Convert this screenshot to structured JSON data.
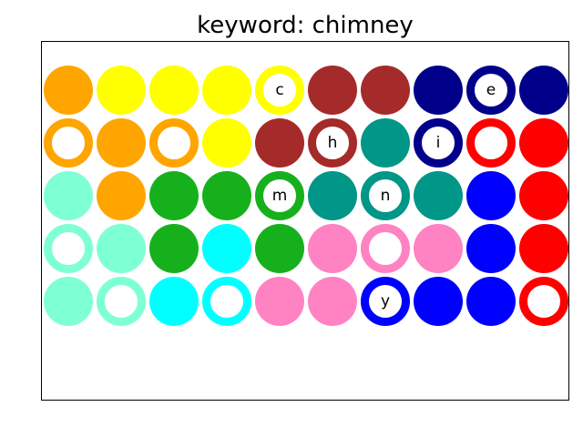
{
  "title": "keyword: chimney",
  "colors": {
    "orange": "#ffa500",
    "yellow": "#ffff00",
    "brown": "#a52a2a",
    "navy": "#00008b",
    "teal": "#009688",
    "red": "#ff0000",
    "aquamarine": "#7fffd4",
    "green": "#17b01d",
    "blue": "#0000ff",
    "cyan": "#00ffff",
    "pink": "#ff82c3"
  },
  "grid": [
    [
      {
        "color": "orange",
        "filled": true,
        "letter": ""
      },
      {
        "color": "yellow",
        "filled": true,
        "letter": ""
      },
      {
        "color": "yellow",
        "filled": true,
        "letter": ""
      },
      {
        "color": "yellow",
        "filled": true,
        "letter": ""
      },
      {
        "color": "yellow",
        "filled": false,
        "letter": "c"
      },
      {
        "color": "brown",
        "filled": true,
        "letter": ""
      },
      {
        "color": "brown",
        "filled": true,
        "letter": ""
      },
      {
        "color": "navy",
        "filled": true,
        "letter": ""
      },
      {
        "color": "navy",
        "filled": false,
        "letter": "e"
      },
      {
        "color": "navy",
        "filled": true,
        "letter": ""
      }
    ],
    [
      {
        "color": "orange",
        "filled": false,
        "letter": ""
      },
      {
        "color": "orange",
        "filled": true,
        "letter": ""
      },
      {
        "color": "orange",
        "filled": false,
        "letter": ""
      },
      {
        "color": "yellow",
        "filled": true,
        "letter": ""
      },
      {
        "color": "brown",
        "filled": true,
        "letter": ""
      },
      {
        "color": "brown",
        "filled": false,
        "letter": "h"
      },
      {
        "color": "teal",
        "filled": true,
        "letter": ""
      },
      {
        "color": "navy",
        "filled": false,
        "letter": "i"
      },
      {
        "color": "red",
        "filled": false,
        "letter": ""
      },
      {
        "color": "red",
        "filled": true,
        "letter": ""
      }
    ],
    [
      {
        "color": "aquamarine",
        "filled": true,
        "letter": ""
      },
      {
        "color": "orange",
        "filled": true,
        "letter": ""
      },
      {
        "color": "green",
        "filled": true,
        "letter": ""
      },
      {
        "color": "green",
        "filled": true,
        "letter": ""
      },
      {
        "color": "green",
        "filled": false,
        "letter": "m"
      },
      {
        "color": "teal",
        "filled": true,
        "letter": ""
      },
      {
        "color": "teal",
        "filled": false,
        "letter": "n"
      },
      {
        "color": "teal",
        "filled": true,
        "letter": ""
      },
      {
        "color": "blue",
        "filled": true,
        "letter": ""
      },
      {
        "color": "red",
        "filled": true,
        "letter": ""
      }
    ],
    [
      {
        "color": "aquamarine",
        "filled": false,
        "letter": ""
      },
      {
        "color": "aquamarine",
        "filled": true,
        "letter": ""
      },
      {
        "color": "green",
        "filled": true,
        "letter": ""
      },
      {
        "color": "cyan",
        "filled": true,
        "letter": ""
      },
      {
        "color": "green",
        "filled": true,
        "letter": ""
      },
      {
        "color": "pink",
        "filled": true,
        "letter": ""
      },
      {
        "color": "pink",
        "filled": false,
        "letter": ""
      },
      {
        "color": "pink",
        "filled": true,
        "letter": ""
      },
      {
        "color": "blue",
        "filled": true,
        "letter": ""
      },
      {
        "color": "red",
        "filled": true,
        "letter": ""
      }
    ],
    [
      {
        "color": "aquamarine",
        "filled": true,
        "letter": ""
      },
      {
        "color": "aquamarine",
        "filled": false,
        "letter": ""
      },
      {
        "color": "cyan",
        "filled": true,
        "letter": ""
      },
      {
        "color": "cyan",
        "filled": false,
        "letter": ""
      },
      {
        "color": "pink",
        "filled": true,
        "letter": ""
      },
      {
        "color": "pink",
        "filled": true,
        "letter": ""
      },
      {
        "color": "blue",
        "filled": false,
        "letter": "y"
      },
      {
        "color": "blue",
        "filled": true,
        "letter": ""
      },
      {
        "color": "blue",
        "filled": true,
        "letter": ""
      },
      {
        "color": "red",
        "filled": false,
        "letter": ""
      }
    ]
  ]
}
